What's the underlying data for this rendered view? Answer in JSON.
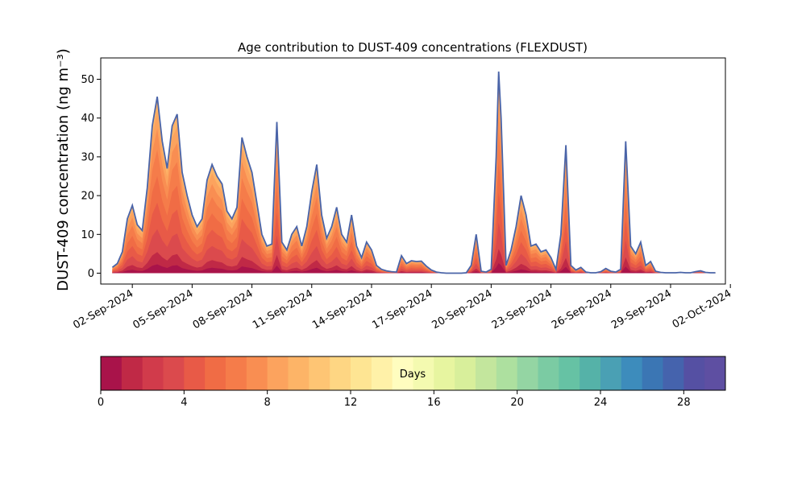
{
  "chart_data": {
    "type": "area",
    "title": "Age contribution to DUST-409 concentrations (FLEXDUST)",
    "ylabel": "DUST-409 concentration (ng m⁻³)",
    "xlabel": "",
    "xlim": [
      "2024-08-31T10:00",
      "2024-10-01T18:00"
    ],
    "ylim": [
      -2.8,
      55.5
    ],
    "yticks": [
      0,
      10,
      20,
      30,
      40,
      50
    ],
    "xticks": [
      "02-Sep-2024",
      "05-Sep-2024",
      "08-Sep-2024",
      "11-Sep-2024",
      "14-Sep-2024",
      "17-Sep-2024",
      "20-Sep-2024",
      "23-Sep-2024",
      "26-Sep-2024",
      "29-Sep-2024",
      "02-Oct-2024"
    ],
    "grid": false,
    "x": [
      "2024-09-01T00:00",
      "2024-09-01T06:00",
      "2024-09-01T12:00",
      "2024-09-01T18:00",
      "2024-09-02T00:00",
      "2024-09-02T06:00",
      "2024-09-02T12:00",
      "2024-09-02T18:00",
      "2024-09-03T00:00",
      "2024-09-03T06:00",
      "2024-09-03T12:00",
      "2024-09-03T18:00",
      "2024-09-04T00:00",
      "2024-09-04T06:00",
      "2024-09-04T12:00",
      "2024-09-04T18:00",
      "2024-09-05T00:00",
      "2024-09-05T06:00",
      "2024-09-05T12:00",
      "2024-09-05T18:00",
      "2024-09-06T00:00",
      "2024-09-06T06:00",
      "2024-09-06T12:00",
      "2024-09-06T18:00",
      "2024-09-07T00:00",
      "2024-09-07T06:00",
      "2024-09-07T12:00",
      "2024-09-07T18:00",
      "2024-09-08T00:00",
      "2024-09-08T06:00",
      "2024-09-08T12:00",
      "2024-09-08T18:00",
      "2024-09-09T00:00",
      "2024-09-09T06:00",
      "2024-09-09T12:00",
      "2024-09-09T18:00",
      "2024-09-10T00:00",
      "2024-09-10T06:00",
      "2024-09-10T12:00",
      "2024-09-10T18:00",
      "2024-09-11T00:00",
      "2024-09-11T06:00",
      "2024-09-11T12:00",
      "2024-09-11T18:00",
      "2024-09-12T00:00",
      "2024-09-12T06:00",
      "2024-09-12T12:00",
      "2024-09-12T18:00",
      "2024-09-13T00:00",
      "2024-09-13T06:00",
      "2024-09-13T12:00",
      "2024-09-13T18:00",
      "2024-09-14T00:00",
      "2024-09-14T06:00",
      "2024-09-14T12:00",
      "2024-09-14T18:00",
      "2024-09-15T00:00",
      "2024-09-15T06:00",
      "2024-09-15T12:00",
      "2024-09-15T18:00",
      "2024-09-16T00:00",
      "2024-09-16T06:00",
      "2024-09-16T12:00",
      "2024-09-16T18:00",
      "2024-09-17T00:00",
      "2024-09-17T06:00",
      "2024-09-17T12:00",
      "2024-09-17T18:00",
      "2024-09-18T00:00",
      "2024-09-18T06:00",
      "2024-09-18T12:00",
      "2024-09-18T18:00",
      "2024-09-19T00:00",
      "2024-09-19T06:00",
      "2024-09-19T12:00",
      "2024-09-19T18:00",
      "2024-09-20T00:00",
      "2024-09-20T06:00",
      "2024-09-20T12:00",
      "2024-09-20T18:00",
      "2024-09-21T00:00",
      "2024-09-21T06:00",
      "2024-09-21T12:00",
      "2024-09-21T18:00",
      "2024-09-22T00:00",
      "2024-09-22T06:00",
      "2024-09-22T12:00",
      "2024-09-22T18:00",
      "2024-09-23T00:00",
      "2024-09-23T06:00",
      "2024-09-23T12:00",
      "2024-09-23T18:00",
      "2024-09-24T00:00",
      "2024-09-24T06:00",
      "2024-09-24T12:00",
      "2024-09-24T18:00",
      "2024-09-25T00:00",
      "2024-09-25T06:00",
      "2024-09-25T12:00",
      "2024-09-25T18:00",
      "2024-09-26T00:00",
      "2024-09-26T06:00",
      "2024-09-26T12:00",
      "2024-09-26T18:00",
      "2024-09-27T00:00",
      "2024-09-27T06:00",
      "2024-09-27T12:00",
      "2024-09-27T18:00",
      "2024-09-28T00:00",
      "2024-09-28T06:00",
      "2024-09-28T12:00",
      "2024-09-28T18:00",
      "2024-09-29T00:00",
      "2024-09-29T06:00",
      "2024-09-29T12:00",
      "2024-09-29T18:00",
      "2024-09-30T00:00",
      "2024-09-30T06:00",
      "2024-09-30T12:00",
      "2024-09-30T18:00",
      "2024-10-01T00:00",
      "2024-10-01T06:00"
    ],
    "total": [
      1.5,
      2.5,
      5.5,
      14,
      17.5,
      12.5,
      11,
      22,
      38,
      45.5,
      34,
      27,
      38,
      41,
      26,
      20,
      15,
      12,
      14,
      24,
      28,
      25,
      23,
      16,
      14,
      17,
      35,
      30,
      26,
      18,
      10,
      7,
      7.5,
      39,
      8,
      6,
      10,
      12,
      7,
      12,
      21,
      28,
      15,
      9,
      12,
      17,
      10,
      8,
      15,
      7,
      4,
      8,
      6,
      2,
      1,
      0.6,
      0.4,
      0.3,
      4.5,
      2.5,
      3.2,
      3,
      3.1,
      1.8,
      0.8,
      0.3,
      0.1,
      0,
      0,
      0,
      0,
      0,
      0,
      0,
      0,
      0,
      0,
      0,
      0,
      0,
      0,
      0,
      0,
      0,
      0,
      0,
      0,
      0,
      0,
      0.7,
      0,
      0,
      0,
      0,
      0,
      0,
      0,
      0,
      0,
      0.3,
      1.8,
      0.1,
      0.1,
      0.1,
      0.5,
      0.2,
      0.1,
      0.1,
      0.1,
      0.1,
      0.1,
      0.1,
      0.1,
      0.2,
      0.1,
      0.1,
      0.1,
      0.1,
      0.1,
      0.1,
      0.1,
      0.1,
      0.1,
      0.1,
      0.1
    ],
    "total_sep_late": [
      [
        "2024-09-18T18:00",
        0.1
      ],
      [
        "2024-09-19T00:00",
        2
      ],
      [
        "2024-09-19T06:00",
        10
      ],
      [
        "2024-09-19T12:00",
        0.5
      ],
      [
        "2024-09-19T18:00",
        0.3
      ],
      [
        "2024-09-20T00:00",
        1
      ],
      [
        "2024-09-20T06:00",
        30
      ],
      [
        "2024-09-20T09:00",
        52
      ],
      [
        "2024-09-20T12:00",
        40
      ],
      [
        "2024-09-20T18:00",
        2
      ],
      [
        "2024-09-21T00:00",
        6
      ],
      [
        "2024-09-21T06:00",
        12
      ],
      [
        "2024-09-21T12:00",
        20
      ],
      [
        "2024-09-21T18:00",
        15
      ],
      [
        "2024-09-22T00:00",
        7
      ],
      [
        "2024-09-22T06:00",
        7.5
      ],
      [
        "2024-09-22T12:00",
        5.5
      ],
      [
        "2024-09-22T18:00",
        6
      ],
      [
        "2024-09-23T00:00",
        4
      ],
      [
        "2024-09-23T06:00",
        1
      ],
      [
        "2024-09-23T12:00",
        10
      ],
      [
        "2024-09-23T18:00",
        33
      ],
      [
        "2024-09-24T00:00",
        2
      ],
      [
        "2024-09-24T06:00",
        0.8
      ],
      [
        "2024-09-24T12:00",
        1.5
      ],
      [
        "2024-09-24T18:00",
        0.3
      ],
      [
        "2024-09-25T00:00",
        0.1
      ],
      [
        "2024-09-25T06:00",
        0.1
      ],
      [
        "2024-09-25T12:00",
        0.4
      ],
      [
        "2024-09-25T18:00",
        1.2
      ],
      [
        "2024-09-26T00:00",
        0.5
      ],
      [
        "2024-09-26T06:00",
        0.3
      ],
      [
        "2024-09-26T12:00",
        1
      ],
      [
        "2024-09-26T18:00",
        34
      ],
      [
        "2024-09-27T00:00",
        7
      ],
      [
        "2024-09-27T06:00",
        5
      ],
      [
        "2024-09-27T12:00",
        8
      ],
      [
        "2024-09-27T18:00",
        2
      ],
      [
        "2024-09-28T00:00",
        3
      ],
      [
        "2024-09-28T06:00",
        0.5
      ],
      [
        "2024-09-28T12:00",
        0.2
      ],
      [
        "2024-09-28T18:00",
        0.1
      ],
      [
        "2024-09-29T00:00",
        0.1
      ],
      [
        "2024-09-29T06:00",
        0.1
      ],
      [
        "2024-09-29T12:00",
        0.2
      ],
      [
        "2024-09-29T18:00",
        0.1
      ],
      [
        "2024-09-30T00:00",
        0.1
      ],
      [
        "2024-09-30T06:00",
        0.4
      ],
      [
        "2024-09-30T12:00",
        0.6
      ],
      [
        "2024-09-30T18:00",
        0.2
      ],
      [
        "2024-10-01T00:00",
        0.1
      ],
      [
        "2024-10-01T06:00",
        0.1
      ]
    ],
    "line_color": "#4a64a8",
    "colorbar": {
      "label": "Days",
      "ticks": [
        0,
        4,
        8,
        12,
        16,
        20,
        24,
        28
      ],
      "range": [
        0,
        30
      ],
      "colors": [
        "#a9134a",
        "#c02946",
        "#d13b4b",
        "#db4a4d",
        "#e85a47",
        "#f06c45",
        "#f57c4a",
        "#f98e52",
        "#fca35e",
        "#fdb467",
        "#fec574",
        "#fed683",
        "#fee593",
        "#fff1a8",
        "#fffdbf",
        "#f4fab0",
        "#e7f5a0",
        "#d8ef9b",
        "#c3e69d",
        "#ade09f",
        "#94d5a3",
        "#7bcba3",
        "#66c2a4",
        "#55b2a8",
        "#4aa0b4",
        "#3d8cbc",
        "#3b76b4",
        "#4563ad",
        "#5550a3",
        "#5e4fa2"
      ]
    }
  }
}
